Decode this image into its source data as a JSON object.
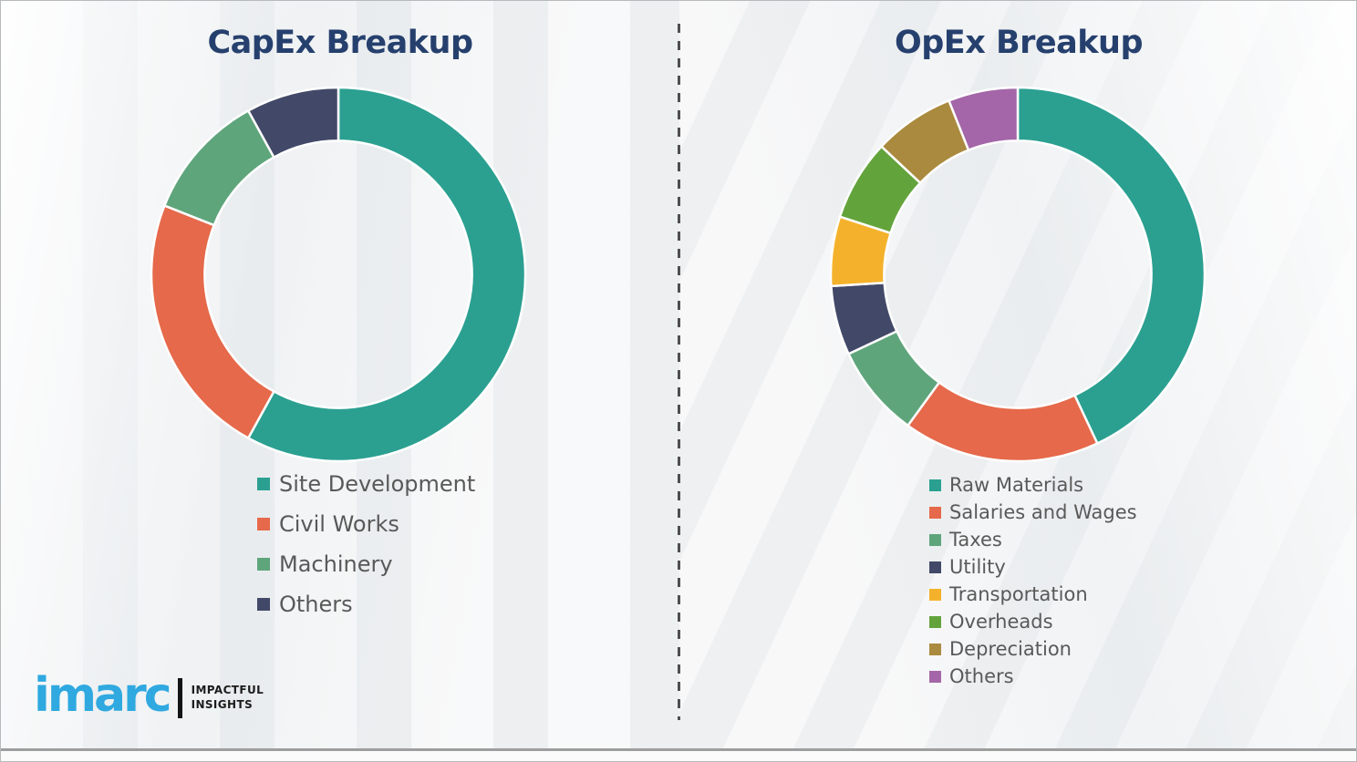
{
  "chart_data": [
    {
      "type": "donut",
      "title": "CapEx Breakup",
      "categories": [
        "Site Development",
        "Civil Works",
        "Machinery",
        "Others"
      ],
      "values": [
        58,
        23,
        11,
        8
      ],
      "values_note": "percent share, estimated from arc angles (no numeric labels shown)",
      "colors": [
        "#2ba091",
        "#e5694a",
        "#5fa57c",
        "#424968"
      ],
      "start_angle_deg": 0,
      "direction": "clockwise",
      "inner_radius_ratio": 0.715,
      "legend_position": "below-chart-left"
    },
    {
      "type": "donut",
      "title": "OpEx Breakup",
      "categories": [
        "Raw Materials",
        "Salaries and Wages",
        "Taxes",
        "Utility",
        "Transportation",
        "Overheads",
        "Depreciation",
        "Others"
      ],
      "values": [
        43,
        17,
        8,
        6,
        6,
        7,
        7,
        6
      ],
      "values_note": "percent share, estimated from arc angles (no numeric labels shown)",
      "colors": [
        "#2ba091",
        "#e5694a",
        "#5fa57c",
        "#424968",
        "#f4b22c",
        "#63a33c",
        "#aa8a3e",
        "#a466a8"
      ],
      "start_angle_deg": 0,
      "direction": "clockwise",
      "inner_radius_ratio": 0.715,
      "legend_position": "below-chart-left"
    }
  ],
  "branding": {
    "logo_text": "imarc",
    "logo_color": "#2fa9e0",
    "tagline_line1": "IMPACTFUL",
    "tagline_line2": "INSIGHTS"
  },
  "style": {
    "title_color": "#26406e",
    "legend_text_color": "#595959",
    "divider_color": "#4f4f4f",
    "bottom_rule_color": "#9e9e9e",
    "background_color": "#f2f3f4",
    "segment_gap_color": "#ffffff"
  }
}
